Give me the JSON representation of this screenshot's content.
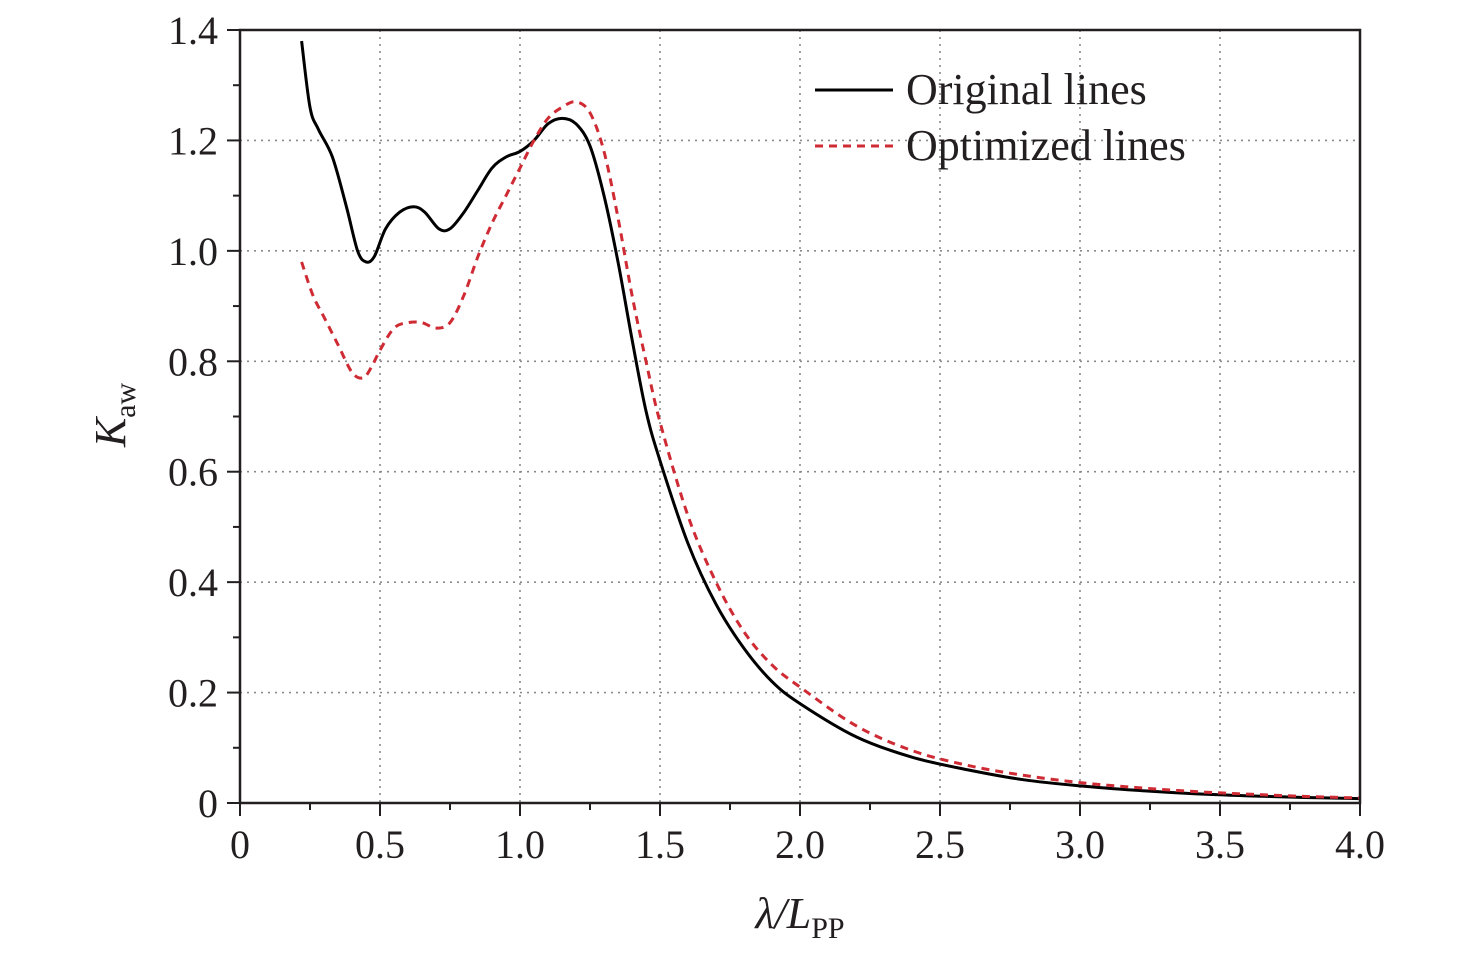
{
  "chart_data": {
    "type": "line",
    "xlabel": {
      "main": "λ/L",
      "sub": "PP"
    },
    "ylabel": {
      "main": "K",
      "sub": "aw"
    },
    "xlim": [
      0,
      4.0
    ],
    "ylim": [
      0,
      1.4
    ],
    "xticks": [
      0,
      0.5,
      1.0,
      1.5,
      2.0,
      2.5,
      3.0,
      3.5,
      4.0
    ],
    "xtick_labels": [
      "0",
      "0.5",
      "1.0",
      "1.5",
      "2.0",
      "2.5",
      "3.0",
      "3.5",
      "4.0"
    ],
    "yticks": [
      0,
      0.2,
      0.4,
      0.6,
      0.8,
      1.0,
      1.2,
      1.4
    ],
    "ytick_labels": [
      "0",
      "0.2",
      "0.4",
      "0.6",
      "0.8",
      "1.0",
      "1.2",
      "1.4"
    ],
    "grid": true,
    "legend_position": "top-right",
    "series": [
      {
        "name": "Original lines",
        "color": "#000000",
        "dash": "solid",
        "x": [
          0.22,
          0.25,
          0.28,
          0.33,
          0.38,
          0.42,
          0.45,
          0.48,
          0.52,
          0.57,
          0.62,
          0.66,
          0.71,
          0.75,
          0.8,
          0.85,
          0.9,
          0.95,
          1.0,
          1.05,
          1.1,
          1.15,
          1.2,
          1.25,
          1.3,
          1.35,
          1.4,
          1.45,
          1.5,
          1.6,
          1.7,
          1.8,
          1.9,
          2.0,
          2.2,
          2.4,
          2.6,
          2.8,
          3.0,
          3.2,
          3.4,
          3.6,
          3.8,
          4.0
        ],
        "y": [
          1.38,
          1.26,
          1.22,
          1.17,
          1.08,
          1.0,
          0.98,
          0.99,
          1.04,
          1.07,
          1.08,
          1.07,
          1.04,
          1.04,
          1.07,
          1.11,
          1.15,
          1.17,
          1.18,
          1.2,
          1.23,
          1.24,
          1.23,
          1.19,
          1.1,
          0.98,
          0.84,
          0.71,
          0.62,
          0.47,
          0.36,
          0.28,
          0.22,
          0.18,
          0.12,
          0.083,
          0.06,
          0.042,
          0.031,
          0.023,
          0.017,
          0.013,
          0.01,
          0.008
        ]
      },
      {
        "name": "Optimized lines",
        "color": "#cf2b34",
        "dash": "dashed",
        "x": [
          0.22,
          0.26,
          0.3,
          0.35,
          0.4,
          0.44,
          0.47,
          0.5,
          0.55,
          0.6,
          0.65,
          0.7,
          0.75,
          0.8,
          0.85,
          0.9,
          0.95,
          1.0,
          1.05,
          1.1,
          1.15,
          1.2,
          1.25,
          1.3,
          1.35,
          1.4,
          1.45,
          1.5,
          1.6,
          1.7,
          1.8,
          1.9,
          2.0,
          2.2,
          2.4,
          2.6,
          2.8,
          3.0,
          3.2,
          3.4,
          3.6,
          3.8,
          4.0
        ],
        "y": [
          0.98,
          0.92,
          0.88,
          0.83,
          0.78,
          0.77,
          0.79,
          0.82,
          0.86,
          0.87,
          0.87,
          0.86,
          0.87,
          0.92,
          0.99,
          1.05,
          1.1,
          1.15,
          1.2,
          1.24,
          1.26,
          1.27,
          1.25,
          1.18,
          1.06,
          0.92,
          0.8,
          0.69,
          0.52,
          0.4,
          0.31,
          0.25,
          0.21,
          0.14,
          0.095,
          0.068,
          0.05,
          0.037,
          0.028,
          0.021,
          0.016,
          0.012,
          0.009
        ]
      }
    ]
  }
}
